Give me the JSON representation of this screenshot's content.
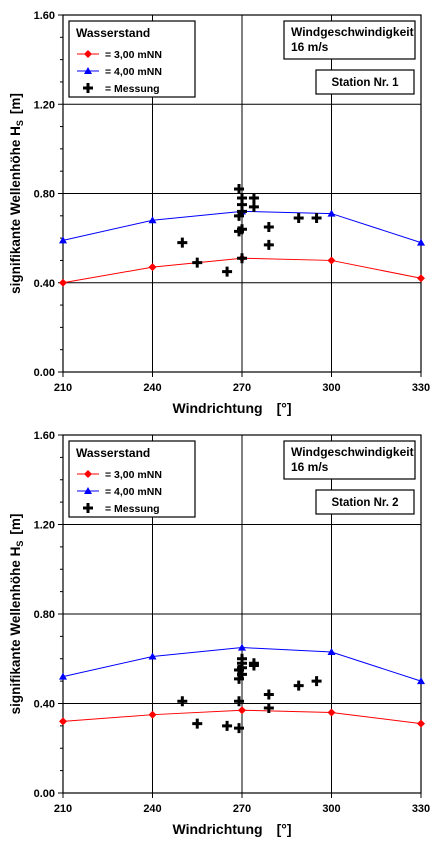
{
  "y_axis_label": "signifikante Wellenhöhe",
  "y_axis_symbol": "H",
  "y_axis_subscript": "S",
  "y_axis_unit": "[m]",
  "colors": {
    "series1": "#ff0000",
    "series2": "#0000ff",
    "measurement": "#000000",
    "grid": "#000000"
  },
  "chart_data": [
    {
      "type": "line",
      "xlabel": "Windrichtung",
      "xunit": "[°]",
      "xlim": [
        210,
        330
      ],
      "ylim": [
        0.0,
        1.6
      ],
      "x_ticks": [
        "210",
        "240",
        "270",
        "300",
        "330"
      ],
      "y_ticks": [
        "0.00",
        "0.40",
        "0.80",
        "1.20",
        "1.60"
      ],
      "grid": true,
      "legend_title": "Wasserstand",
      "legend_position": "top-left",
      "info_lines": [
        "Windgeschwindigkeit",
        "16 m/s"
      ],
      "station_label": "Station Nr. 1",
      "series": [
        {
          "name": "= 3,00 mNN",
          "marker": "diamond",
          "color": "#ff0000",
          "x": [
            210,
            240,
            270,
            300,
            330
          ],
          "y": [
            0.4,
            0.47,
            0.51,
            0.5,
            0.42
          ]
        },
        {
          "name": "= 4,00 mNN",
          "marker": "triangle",
          "color": "#0000ff",
          "x": [
            210,
            240,
            270,
            300,
            330
          ],
          "y": [
            0.59,
            0.68,
            0.72,
            0.71,
            0.58
          ]
        },
        {
          "name": "= Messung",
          "marker": "plus",
          "color": "#000000",
          "scatter": true,
          "x": [
            250,
            255,
            265,
            269,
            269,
            269,
            270,
            270,
            270,
            270,
            270,
            274,
            274,
            279,
            279,
            289,
            295
          ],
          "y": [
            0.58,
            0.49,
            0.45,
            0.63,
            0.7,
            0.82,
            0.51,
            0.64,
            0.72,
            0.75,
            0.78,
            0.74,
            0.78,
            0.57,
            0.65,
            0.69,
            0.69
          ]
        }
      ]
    },
    {
      "type": "line",
      "xlabel": "Windrichtung",
      "xunit": "[°]",
      "xlim": [
        210,
        330
      ],
      "ylim": [
        0.0,
        1.6
      ],
      "x_ticks": [
        "210",
        "240",
        "270",
        "300",
        "330"
      ],
      "y_ticks": [
        "0.00",
        "0.40",
        "0.80",
        "1.20",
        "1.60"
      ],
      "grid": true,
      "legend_title": "Wasserstand",
      "legend_position": "top-left",
      "info_lines": [
        "Windgeschwindigkeit",
        "16 m/s"
      ],
      "station_label": "Station Nr. 2",
      "series": [
        {
          "name": "= 3,00 mNN",
          "marker": "diamond",
          "color": "#ff0000",
          "x": [
            210,
            240,
            270,
            300,
            330
          ],
          "y": [
            0.32,
            0.35,
            0.37,
            0.36,
            0.31
          ]
        },
        {
          "name": "= 4,00 mNN",
          "marker": "triangle",
          "color": "#0000ff",
          "x": [
            210,
            240,
            270,
            300,
            330
          ],
          "y": [
            0.52,
            0.61,
            0.65,
            0.63,
            0.5
          ]
        },
        {
          "name": "= Messung",
          "marker": "plus",
          "color": "#000000",
          "scatter": true,
          "x": [
            250,
            255,
            265,
            269,
            269,
            269,
            269,
            270,
            270,
            270,
            270,
            274,
            274,
            279,
            279,
            289,
            295
          ],
          "y": [
            0.41,
            0.31,
            0.3,
            0.29,
            0.41,
            0.51,
            0.55,
            0.53,
            0.56,
            0.58,
            0.6,
            0.57,
            0.58,
            0.38,
            0.44,
            0.48,
            0.5
          ]
        }
      ]
    }
  ]
}
